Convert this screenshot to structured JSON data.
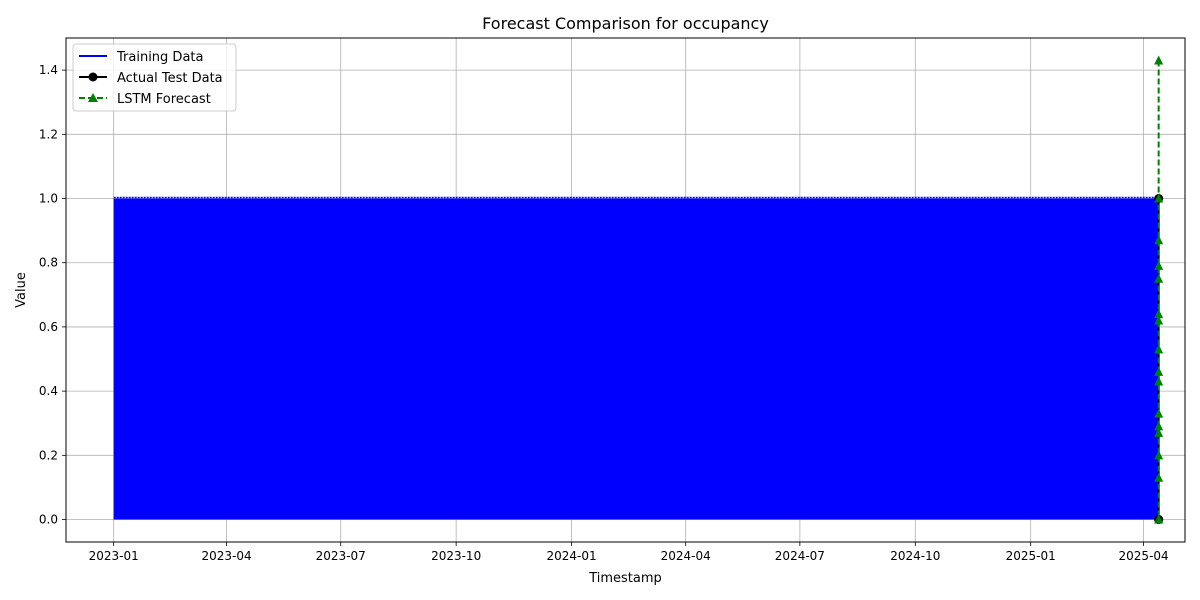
{
  "chart_data": {
    "type": "line",
    "title": "Forecast Comparison for occupancy",
    "xlabel": "Timestamp",
    "ylabel": "Value",
    "xlim": [
      "2022-11-24",
      "2025-05-04"
    ],
    "ylim": [
      -0.07,
      1.5
    ],
    "x_ticks": [
      "2023-01",
      "2023-04",
      "2023-07",
      "2023-10",
      "2024-01",
      "2024-04",
      "2024-07",
      "2024-10",
      "2025-01",
      "2025-04"
    ],
    "y_ticks": [
      "0.0",
      "0.2",
      "0.4",
      "0.6",
      "0.8",
      "1.0",
      "1.2",
      "1.4"
    ],
    "grid": true,
    "legend_position": "top-left",
    "series": [
      {
        "name": "Training Data",
        "color": "#0000ff",
        "style": "solid",
        "marker": "none",
        "x_range": [
          "2023-01-01",
          "2025-04-13"
        ],
        "values_range": [
          0,
          1
        ],
        "pattern": "binary occupancy alternating between 0 and 1 throughout the period"
      },
      {
        "name": "Actual Test Data",
        "color": "#000000",
        "style": "solid",
        "marker": "circle",
        "x": [
          "2025-04-13",
          "2025-04-13",
          "2025-04-13"
        ],
        "values": [
          0,
          1,
          0
        ]
      },
      {
        "name": "LSTM Forecast",
        "color": "#008000",
        "style": "dashed",
        "marker": "triangle",
        "x": [
          "2025-04-13",
          "2025-04-13",
          "2025-04-13",
          "2025-04-13",
          "2025-04-13",
          "2025-04-13",
          "2025-04-13",
          "2025-04-13",
          "2025-04-13",
          "2025-04-13",
          "2025-04-13",
          "2025-04-13",
          "2025-04-13",
          "2025-04-13",
          "2025-04-13",
          "2025-04-13",
          "2025-04-13"
        ],
        "values": [
          1.43,
          1.0,
          0.87,
          0.79,
          0.75,
          0.64,
          0.62,
          0.53,
          0.46,
          0.43,
          0.33,
          0.29,
          0.27,
          0.2,
          0.13,
          0.0,
          0.0
        ]
      }
    ]
  }
}
